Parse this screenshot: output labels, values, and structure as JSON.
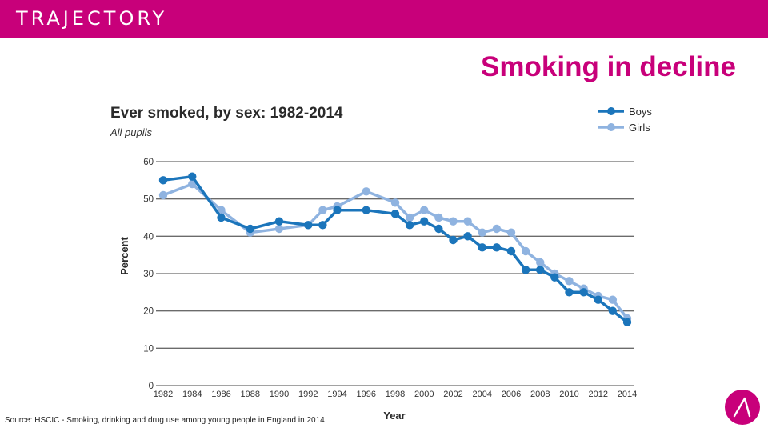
{
  "header": {
    "brand": "TRAJECTORY"
  },
  "slide": {
    "title": "Smoking in decline",
    "source": "Source: HSCIC - Smoking, drinking and drug use among young people in England in 2014",
    "logo_icon": "trajectory-logo-icon"
  },
  "colors": {
    "brand": "#c8007a",
    "boys": "#1b75bb",
    "girls": "#8fb3e0",
    "grid": "#6b6b6b"
  },
  "chart_data": {
    "type": "line",
    "title": "Ever smoked, by sex: 1982-2014",
    "subtitle": "All pupils",
    "xlabel": "Year",
    "ylabel": "Percent",
    "ylim": [
      0,
      60
    ],
    "yticks": [
      0,
      10,
      20,
      30,
      40,
      50,
      60
    ],
    "xlim": [
      1982,
      2014
    ],
    "xticks": [
      1982,
      1984,
      1986,
      1988,
      1990,
      1992,
      1994,
      1996,
      1998,
      2000,
      2002,
      2004,
      2006,
      2008,
      2010,
      2012,
      2014
    ],
    "legend_position": "top-right",
    "series": [
      {
        "name": "Boys",
        "x": [
          1982,
          1984,
          1986,
          1988,
          1990,
          1992,
          1993,
          1994,
          1996,
          1998,
          1999,
          2000,
          2001,
          2002,
          2003,
          2004,
          2005,
          2006,
          2007,
          2008,
          2009,
          2010,
          2011,
          2012,
          2013,
          2014
        ],
        "values": [
          55,
          56,
          45,
          42,
          44,
          43,
          43,
          47,
          47,
          46,
          43,
          44,
          42,
          39,
          40,
          37,
          37,
          36,
          31,
          31,
          29,
          25,
          25,
          23,
          20,
          17
        ]
      },
      {
        "name": "Girls",
        "x": [
          1982,
          1984,
          1986,
          1988,
          1990,
          1992,
          1993,
          1994,
          1996,
          1998,
          1999,
          2000,
          2001,
          2002,
          2003,
          2004,
          2005,
          2006,
          2007,
          2008,
          2009,
          2010,
          2011,
          2012,
          2013,
          2014
        ],
        "values": [
          51,
          54,
          47,
          41,
          42,
          43,
          47,
          48,
          52,
          49,
          45,
          47,
          45,
          44,
          44,
          41,
          42,
          41,
          36,
          33,
          30,
          28,
          26,
          24,
          23,
          18
        ]
      }
    ]
  }
}
